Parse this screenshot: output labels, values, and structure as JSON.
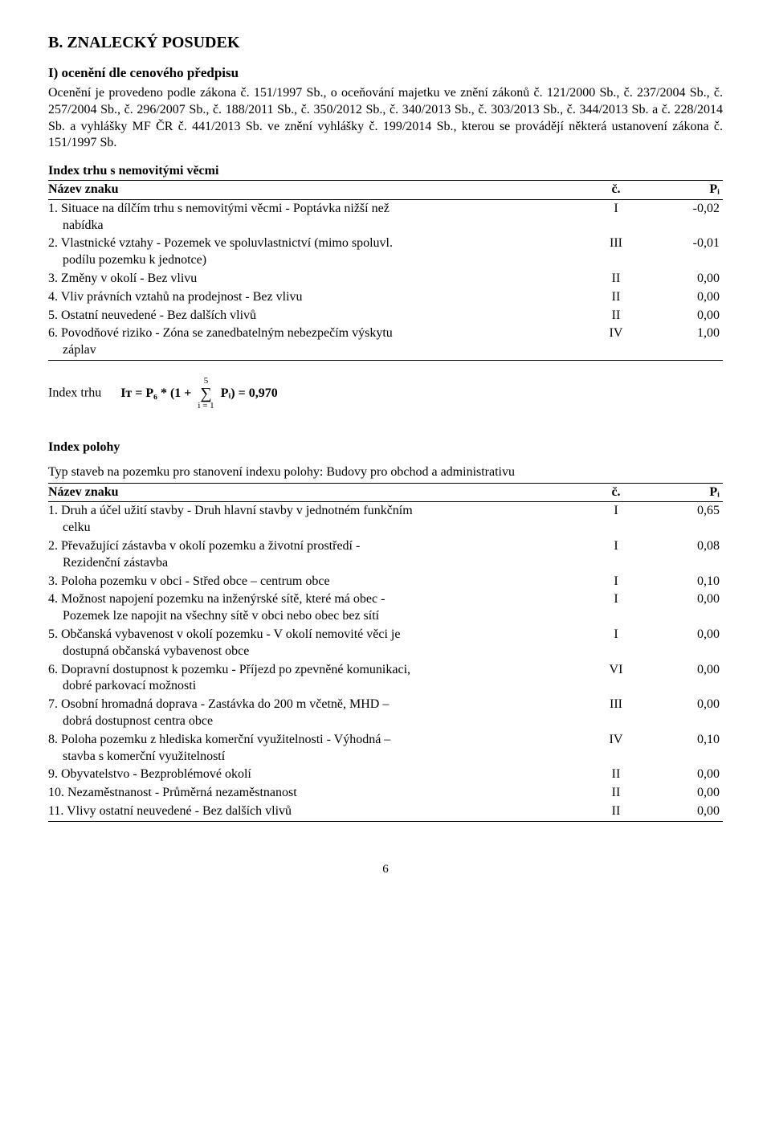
{
  "sectionB": "B. ZNALECKÝ POSUDEK",
  "sectionI": "I) ocenění dle cenového předpisu",
  "intro": "Ocenění je provedeno podle zákona č. 151/1997 Sb., o oceňování majetku ve znění zákonů č. 121/2000 Sb., č. 237/2004 Sb., č. 257/2004 Sb., č. 296/2007 Sb., č. 188/2011 Sb., č. 350/2012 Sb., č. 340/2013 Sb., č. 303/2013 Sb., č. 344/2013 Sb. a č. 228/2014 Sb. a vyhlášky MF ČR č. 441/2013 Sb. ve znění vyhlášky č. 199/2014 Sb., kterou se provádějí některá ustanovení zákona č. 151/1997 Sb.",
  "indexTrhuTitle": "Index trhu s nemovitými věcmi",
  "tableHeaders": {
    "name": "Název znaku",
    "c": "č.",
    "p": "Pᵢ"
  },
  "trhuRows": [
    {
      "name": "1. Situace na dílčím trhu s nemovitými věcmi - Poptávka nižší než",
      "cont": "nabídka",
      "c": "I",
      "p": "-0,02"
    },
    {
      "name": "2. Vlastnické vztahy - Pozemek ve spoluvlastnictví (mimo spoluvl.",
      "cont": "podílu pozemku k jednotce)",
      "c": "III",
      "p": "-0,01"
    },
    {
      "name": "3. Změny v okolí - Bez vlivu",
      "cont": "",
      "c": "II",
      "p": "0,00"
    },
    {
      "name": "4. Vliv právních vztahů na prodejnost - Bez vlivu",
      "cont": "",
      "c": "II",
      "p": "0,00"
    },
    {
      "name": "5. Ostatní neuvedené - Bez dalších vlivů",
      "cont": "",
      "c": "II",
      "p": "0,00"
    },
    {
      "name": "6. Povodňové riziko - Zóna se zanedbatelným nebezpečím výskytu",
      "cont": "záplav",
      "c": "IV",
      "p": "1,00"
    }
  ],
  "formula": {
    "label": "Index trhu",
    "lhs": "Iᴛ = P₆ * (1 + ",
    "sumTop": "5",
    "sumBottom": "i = 1",
    "rhs": " Pᵢ) = ",
    "result": "0,970"
  },
  "indexPolohyTitle": "Index polohy",
  "polohyIntro": "Typ staveb na pozemku pro stanovení indexu polohy: Budovy pro obchod a administrativu",
  "polohyRows": [
    {
      "name": "1. Druh a účel užití stavby - Druh hlavní stavby v jednotném funkčním",
      "cont": "celku",
      "c": "I",
      "p": "0,65"
    },
    {
      "name": "2. Převažující zástavba v okolí pozemku a životní prostředí -",
      "cont": "Rezidenční zástavba",
      "c": "I",
      "p": "0,08"
    },
    {
      "name": "3. Poloha pozemku v obci - Střed obce – centrum obce",
      "cont": "",
      "c": "I",
      "p": "0,10"
    },
    {
      "name": "4. Možnost napojení pozemku na inženýrské sítě, které má obec -",
      "cont": "Pozemek lze napojit na všechny sítě v obci nebo obec bez sítí",
      "c": "I",
      "p": "0,00"
    },
    {
      "name": "5. Občanská vybavenost v okolí pozemku - V okolí nemovité věci je",
      "cont": "dostupná občanská vybavenost obce",
      "c": "I",
      "p": "0,00"
    },
    {
      "name": "6. Dopravní dostupnost k pozemku - Příjezd po zpevněné komunikaci,",
      "cont": "dobré parkovací možnosti",
      "c": "VI",
      "p": "0,00"
    },
    {
      "name": "7. Osobní hromadná doprava - Zastávka do 200 m včetně, MHD –",
      "cont": "dobrá dostupnost centra obce",
      "c": "III",
      "p": "0,00"
    },
    {
      "name": "8. Poloha pozemku z hlediska komerční využitelnosti - Výhodná –",
      "cont": "stavba s komerční využitelností",
      "c": "IV",
      "p": "0,10"
    },
    {
      "name": "9. Obyvatelstvo - Bezproblémové okolí",
      "cont": "",
      "c": "II",
      "p": "0,00"
    },
    {
      "name": "10. Nezaměstnanost - Průměrná nezaměstnanost",
      "cont": "",
      "c": "II",
      "p": "0,00"
    },
    {
      "name": "11. Vlivy ostatní neuvedené - Bez dalších vlivů",
      "cont": "",
      "c": "II",
      "p": "0,00"
    }
  ],
  "pageNum": "6"
}
